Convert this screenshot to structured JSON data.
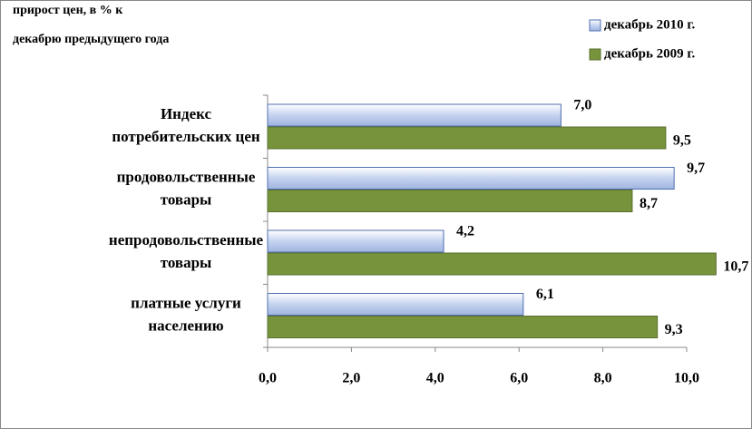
{
  "chart_data": {
    "type": "hbar",
    "subtitle": [
      "прирост цен,  в % к",
      "декабрю предыдущего года"
    ],
    "categories": [
      [
        "Индекс",
        "потребительских цен"
      ],
      [
        "продовольственные",
        "товары"
      ],
      [
        "непродовольственные",
        "товары"
      ],
      [
        "платные услуги",
        "населению"
      ]
    ],
    "series": [
      {
        "name": "декабрь 2010 г.",
        "color": "#c5d3ef",
        "values": [
          7.0,
          9.7,
          4.2,
          6.1
        ],
        "value_labels": [
          "7,0",
          "9,7",
          "4,2",
          "6,1"
        ]
      },
      {
        "name": "декабрь 2009 г.",
        "color": "#77933c",
        "values": [
          9.5,
          8.7,
          10.7,
          9.3
        ],
        "value_labels": [
          "9,5",
          "8,7",
          "10,7",
          "9,3"
        ]
      }
    ],
    "xlim": [
      0,
      10
    ],
    "xticks": [
      {
        "value": 0,
        "label": "0,0"
      },
      {
        "value": 2,
        "label": "2,0"
      },
      {
        "value": 4,
        "label": "4,0"
      },
      {
        "value": 6,
        "label": "6,0"
      },
      {
        "value": 8,
        "label": "8,0"
      },
      {
        "value": 10,
        "label": "10,0"
      }
    ],
    "grid": false
  }
}
